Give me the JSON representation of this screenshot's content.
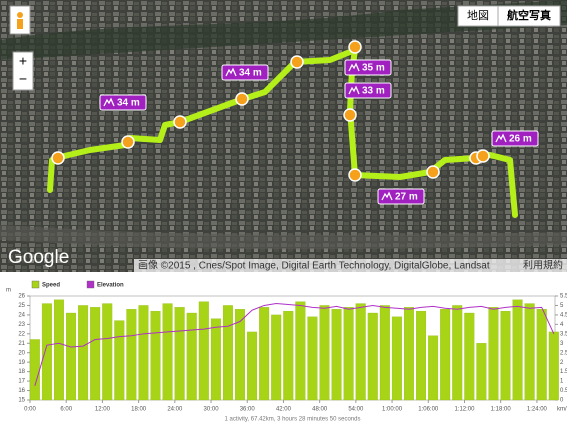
{
  "map": {
    "buttons": [
      "地図",
      "航空写真"
    ],
    "zoom": [
      "+",
      "−"
    ],
    "logo": "Google",
    "attribution": "画像 ©2015 , Cnes/Spot Image, Digital Earth Technology, DigitalGlobe, Landsat",
    "terms": "利用規約",
    "elevation_labels": [
      "34 m",
      "34 m",
      "35 m",
      "33 m",
      "27 m",
      "26 m"
    ]
  },
  "chart_data": {
    "type": "bar-line",
    "y_unit": "m",
    "x_unit": "km/h",
    "footer": "1 activity, 67.42km, 3 hours 28 minutes 50 seconds",
    "x": [
      0,
      2,
      4,
      6,
      8,
      10,
      12,
      14,
      16,
      18,
      20,
      22,
      24,
      26,
      28,
      30,
      32,
      34,
      36,
      38,
      40,
      42,
      44,
      46,
      48,
      50,
      52,
      54,
      56,
      58,
      60,
      62,
      64,
      66,
      68,
      70,
      72,
      74,
      76,
      78,
      80,
      82,
      84,
      86
    ],
    "xlim": [
      0,
      87
    ],
    "xticks": [
      {
        "value": 0,
        "label": "0:00"
      },
      {
        "value": 6,
        "label": "6:00"
      },
      {
        "value": 12,
        "label": "12:00"
      },
      {
        "value": 18,
        "label": "18:00"
      },
      {
        "value": 24,
        "label": "24:00"
      },
      {
        "value": 30,
        "label": "30:00"
      },
      {
        "value": 36,
        "label": "36:00"
      },
      {
        "value": 42,
        "label": "42:00"
      },
      {
        "value": 48,
        "label": "48:00"
      },
      {
        "value": 54,
        "label": "54:00"
      },
      {
        "value": 60,
        "label": "1:00:00"
      },
      {
        "value": 66,
        "label": "1:06:00"
      },
      {
        "value": 72,
        "label": "1:12:00"
      },
      {
        "value": 78,
        "label": "1:18:00"
      },
      {
        "value": 84,
        "label": "1:24:00"
      }
    ],
    "ylim": [
      15,
      26
    ],
    "yticks": [
      15,
      16,
      17,
      18,
      19,
      20,
      21,
      22,
      23,
      24,
      25,
      26
    ],
    "y2lim": [
      0,
      5.5
    ],
    "y2ticks": [
      0,
      0.5,
      1,
      1.5,
      2,
      2.5,
      3,
      3.5,
      4,
      4.5,
      5,
      5.5
    ],
    "series": [
      {
        "name": "Speed",
        "color": "#a8d418",
        "axis": "y2",
        "values": [
          3.2,
          5.1,
          5.3,
          4.6,
          5.0,
          4.9,
          5.1,
          4.2,
          4.8,
          5.0,
          4.7,
          5.1,
          4.9,
          4.6,
          5.2,
          4.3,
          5.0,
          4.8,
          3.6,
          4.9,
          4.5,
          4.7,
          5.2,
          4.4,
          5.0,
          4.8,
          4.9,
          5.1,
          4.6,
          5.0,
          4.4,
          4.9,
          4.7,
          3.4,
          4.8,
          5.0,
          4.6,
          3.0,
          4.9,
          4.7,
          5.3,
          5.1,
          4.8,
          3.6
        ]
      },
      {
        "name": "Elevation",
        "color": "#b030c8",
        "values": [
          16.5,
          20.8,
          21.0,
          20.6,
          20.7,
          21.4,
          21.5,
          21.7,
          21.8,
          22.0,
          22.1,
          22.2,
          22.3,
          22.4,
          22.5,
          22.7,
          22.8,
          23.3,
          24.5,
          25.0,
          25.2,
          25.1,
          25.0,
          24.8,
          24.7,
          24.9,
          24.6,
          24.8,
          25.0,
          24.8,
          24.7,
          24.6,
          24.8,
          24.9,
          24.7,
          24.6,
          24.8,
          24.9,
          24.6,
          24.8,
          24.9,
          24.7,
          24.8,
          22.0
        ]
      }
    ]
  }
}
